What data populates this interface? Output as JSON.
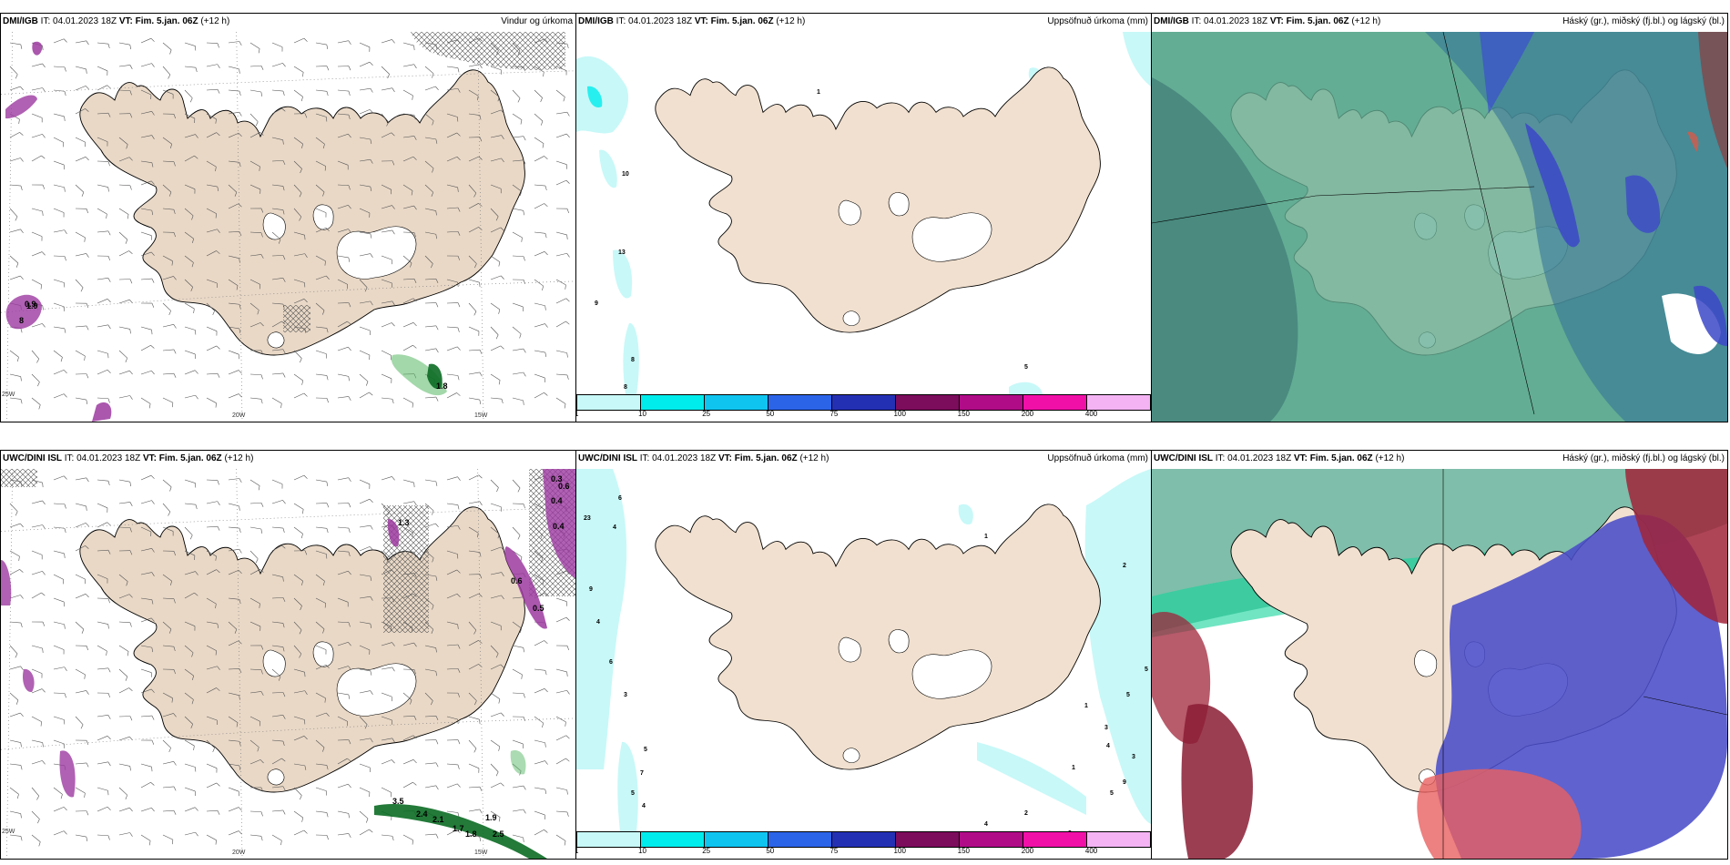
{
  "panels": [
    {
      "source": "DMI/IGB",
      "it": "IT: 04.01.2023 18Z",
      "vt_label": "VT:",
      "vt": "Fim. 5.jan. 06Z",
      "lead": "(+12 h)",
      "title": "Vindur og úrkoma"
    },
    {
      "source": "DMI/IGB",
      "it": "IT: 04.01.2023 18Z",
      "vt_label": "VT:",
      "vt": "Fim. 5.jan. 06Z",
      "lead": "(+12 h)",
      "title": "Uppsöfnuð úrkoma (mm)"
    },
    {
      "source": "DMI/IGB",
      "it": "IT: 04.01.2023 18Z",
      "vt_label": "VT:",
      "vt": "Fim. 5.jan. 06Z",
      "lead": "(+12 h)",
      "title": "Háský (gr.), miðský (fj.bl.) og lágský (bl.)"
    },
    {
      "source": "UWC/DINI ISL",
      "it": "IT: 04.01.2023 18Z",
      "vt_label": "VT:",
      "vt": "Fim. 5.jan. 06Z",
      "lead": "(+12 h)",
      "title": ""
    },
    {
      "source": "UWC/DINI ISL",
      "it": "IT: 04.01.2023 18Z",
      "vt_label": "VT:",
      "vt": "Fim. 5.jan. 06Z",
      "lead": "(+12 h)",
      "title": "Uppsöfnuð úrkoma (mm)"
    },
    {
      "source": "UWC/DINI ISL",
      "it": "IT: 04.01.2023 18Z",
      "vt_label": "VT:",
      "vt": "Fim. 5.jan. 06Z",
      "lead": "(+12 h)",
      "title": "Háský (gr.), miðský (fj.bl.) og lágský (bl.)"
    }
  ],
  "axis_labels": {
    "w20": "20W",
    "w15": "15W",
    "w25": "25W",
    "n66": "66N",
    "n64": "64N"
  },
  "legend": {
    "ticks": [
      "1",
      "10",
      "25",
      "50",
      "75",
      "100",
      "150",
      "200",
      "400"
    ],
    "colors": [
      "#c8f8f8",
      "#00ecec",
      "#10c4f0",
      "#2c64e8",
      "#2430b4",
      "#7c0c5c",
      "#b00c88",
      "#f010a8",
      "#f4b4f4"
    ]
  },
  "colors": {
    "land": "#f1e0cf",
    "land_wind": "#e9d8c6",
    "coast": "#000000"
  },
  "precip_top": [
    "10",
    "13",
    "9",
    "8",
    "8",
    "1",
    "5"
  ],
  "precip_bot": [
    "6",
    "23",
    "4",
    "9",
    "4",
    "6",
    "3",
    "5",
    "7",
    "5",
    "4",
    "1",
    "2",
    "5",
    "5",
    "3",
    "4",
    "3",
    "9",
    "5",
    "3",
    "2",
    "4",
    "3",
    "1",
    "1"
  ],
  "wind_top": [
    "8",
    "0.9",
    "1.8",
    "1.9"
  ],
  "wind_bot": [
    "0.3",
    "0.6",
    "0.4",
    "0.4",
    "0.6",
    "0.5",
    "1.3",
    "1.9",
    "2.5",
    "3.5",
    "2.4",
    "2.1",
    "1.7",
    "1.8"
  ]
}
